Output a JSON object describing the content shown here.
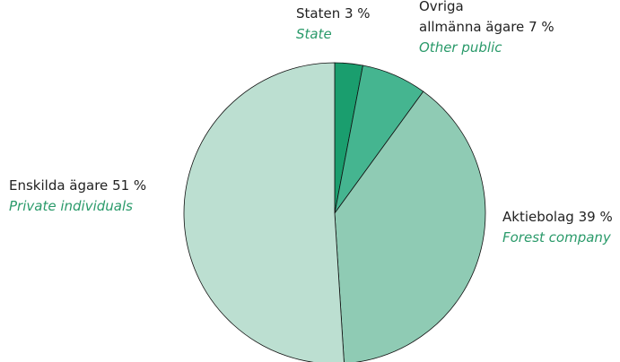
{
  "chart_data": {
    "type": "pie",
    "labels": [
      [
        "Staten"
      ],
      [
        "Övriga",
        "allmänna ägare"
      ],
      [
        "Aktiebolag"
      ],
      [
        "Enskilda ägare"
      ]
    ],
    "translations": [
      "State",
      "Other public",
      "Forest company",
      "Private individuals"
    ],
    "values": [
      3,
      7,
      39,
      51
    ],
    "value_labels": [
      "3 %",
      "7 %",
      "39 %",
      "51 %"
    ],
    "colors": [
      "#1a9e6e",
      "#45b590",
      "#8fcbb4",
      "#bcdfd1"
    ]
  }
}
